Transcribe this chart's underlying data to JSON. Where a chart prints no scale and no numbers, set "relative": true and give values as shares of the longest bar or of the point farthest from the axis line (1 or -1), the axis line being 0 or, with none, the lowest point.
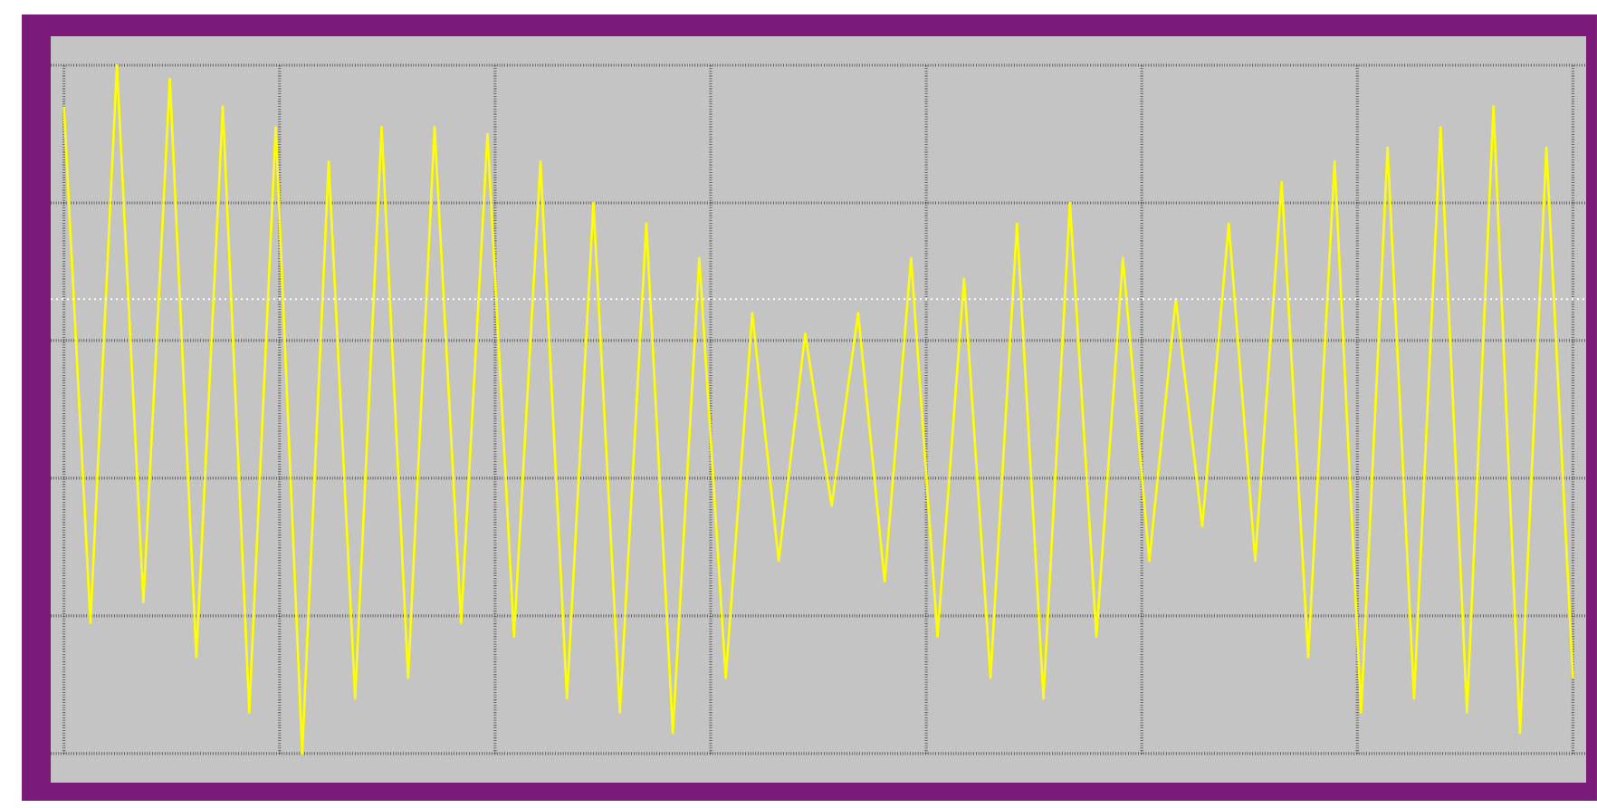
{
  "chart_data": {
    "type": "line",
    "relative": true,
    "color": "#ffff00",
    "grid": true,
    "marker": "none",
    "line_style": "solid",
    "categories": [
      null,
      null,
      null,
      null,
      null,
      null,
      null,
      null,
      null,
      null,
      null,
      null,
      null,
      null,
      null,
      null,
      null,
      null,
      null,
      null,
      null,
      null,
      null,
      null,
      null,
      null,
      null,
      null,
      null,
      null,
      null,
      null,
      null,
      null,
      null,
      null,
      null,
      null,
      null,
      null,
      null,
      null,
      null,
      null,
      null,
      null,
      null,
      null,
      null,
      null,
      null,
      null,
      null,
      null,
      null,
      null,
      null,
      null
    ],
    "values": [
      0.94,
      0.19,
      1.0,
      0.22,
      0.98,
      0.14,
      0.94,
      0.06,
      0.91,
      0.0,
      0.86,
      0.08,
      0.91,
      0.11,
      0.91,
      0.19,
      0.9,
      0.17,
      0.86,
      0.08,
      0.8,
      0.06,
      0.77,
      0.03,
      0.72,
      0.11,
      0.64,
      0.28,
      0.61,
      0.36,
      0.64,
      0.25,
      0.72,
      0.17,
      0.69,
      0.11,
      0.77,
      0.08,
      0.8,
      0.17,
      0.72,
      0.28,
      0.66,
      0.33,
      0.77,
      0.28,
      0.83,
      0.14,
      0.86,
      0.06,
      0.88,
      0.08,
      0.91,
      0.06,
      0.94,
      0.03,
      0.88,
      0.11
    ],
    "ref_lines": [
      {
        "axis": "y",
        "value": 0.66,
        "color": "#ffffff",
        "line_style": "dotted"
      }
    ]
  }
}
